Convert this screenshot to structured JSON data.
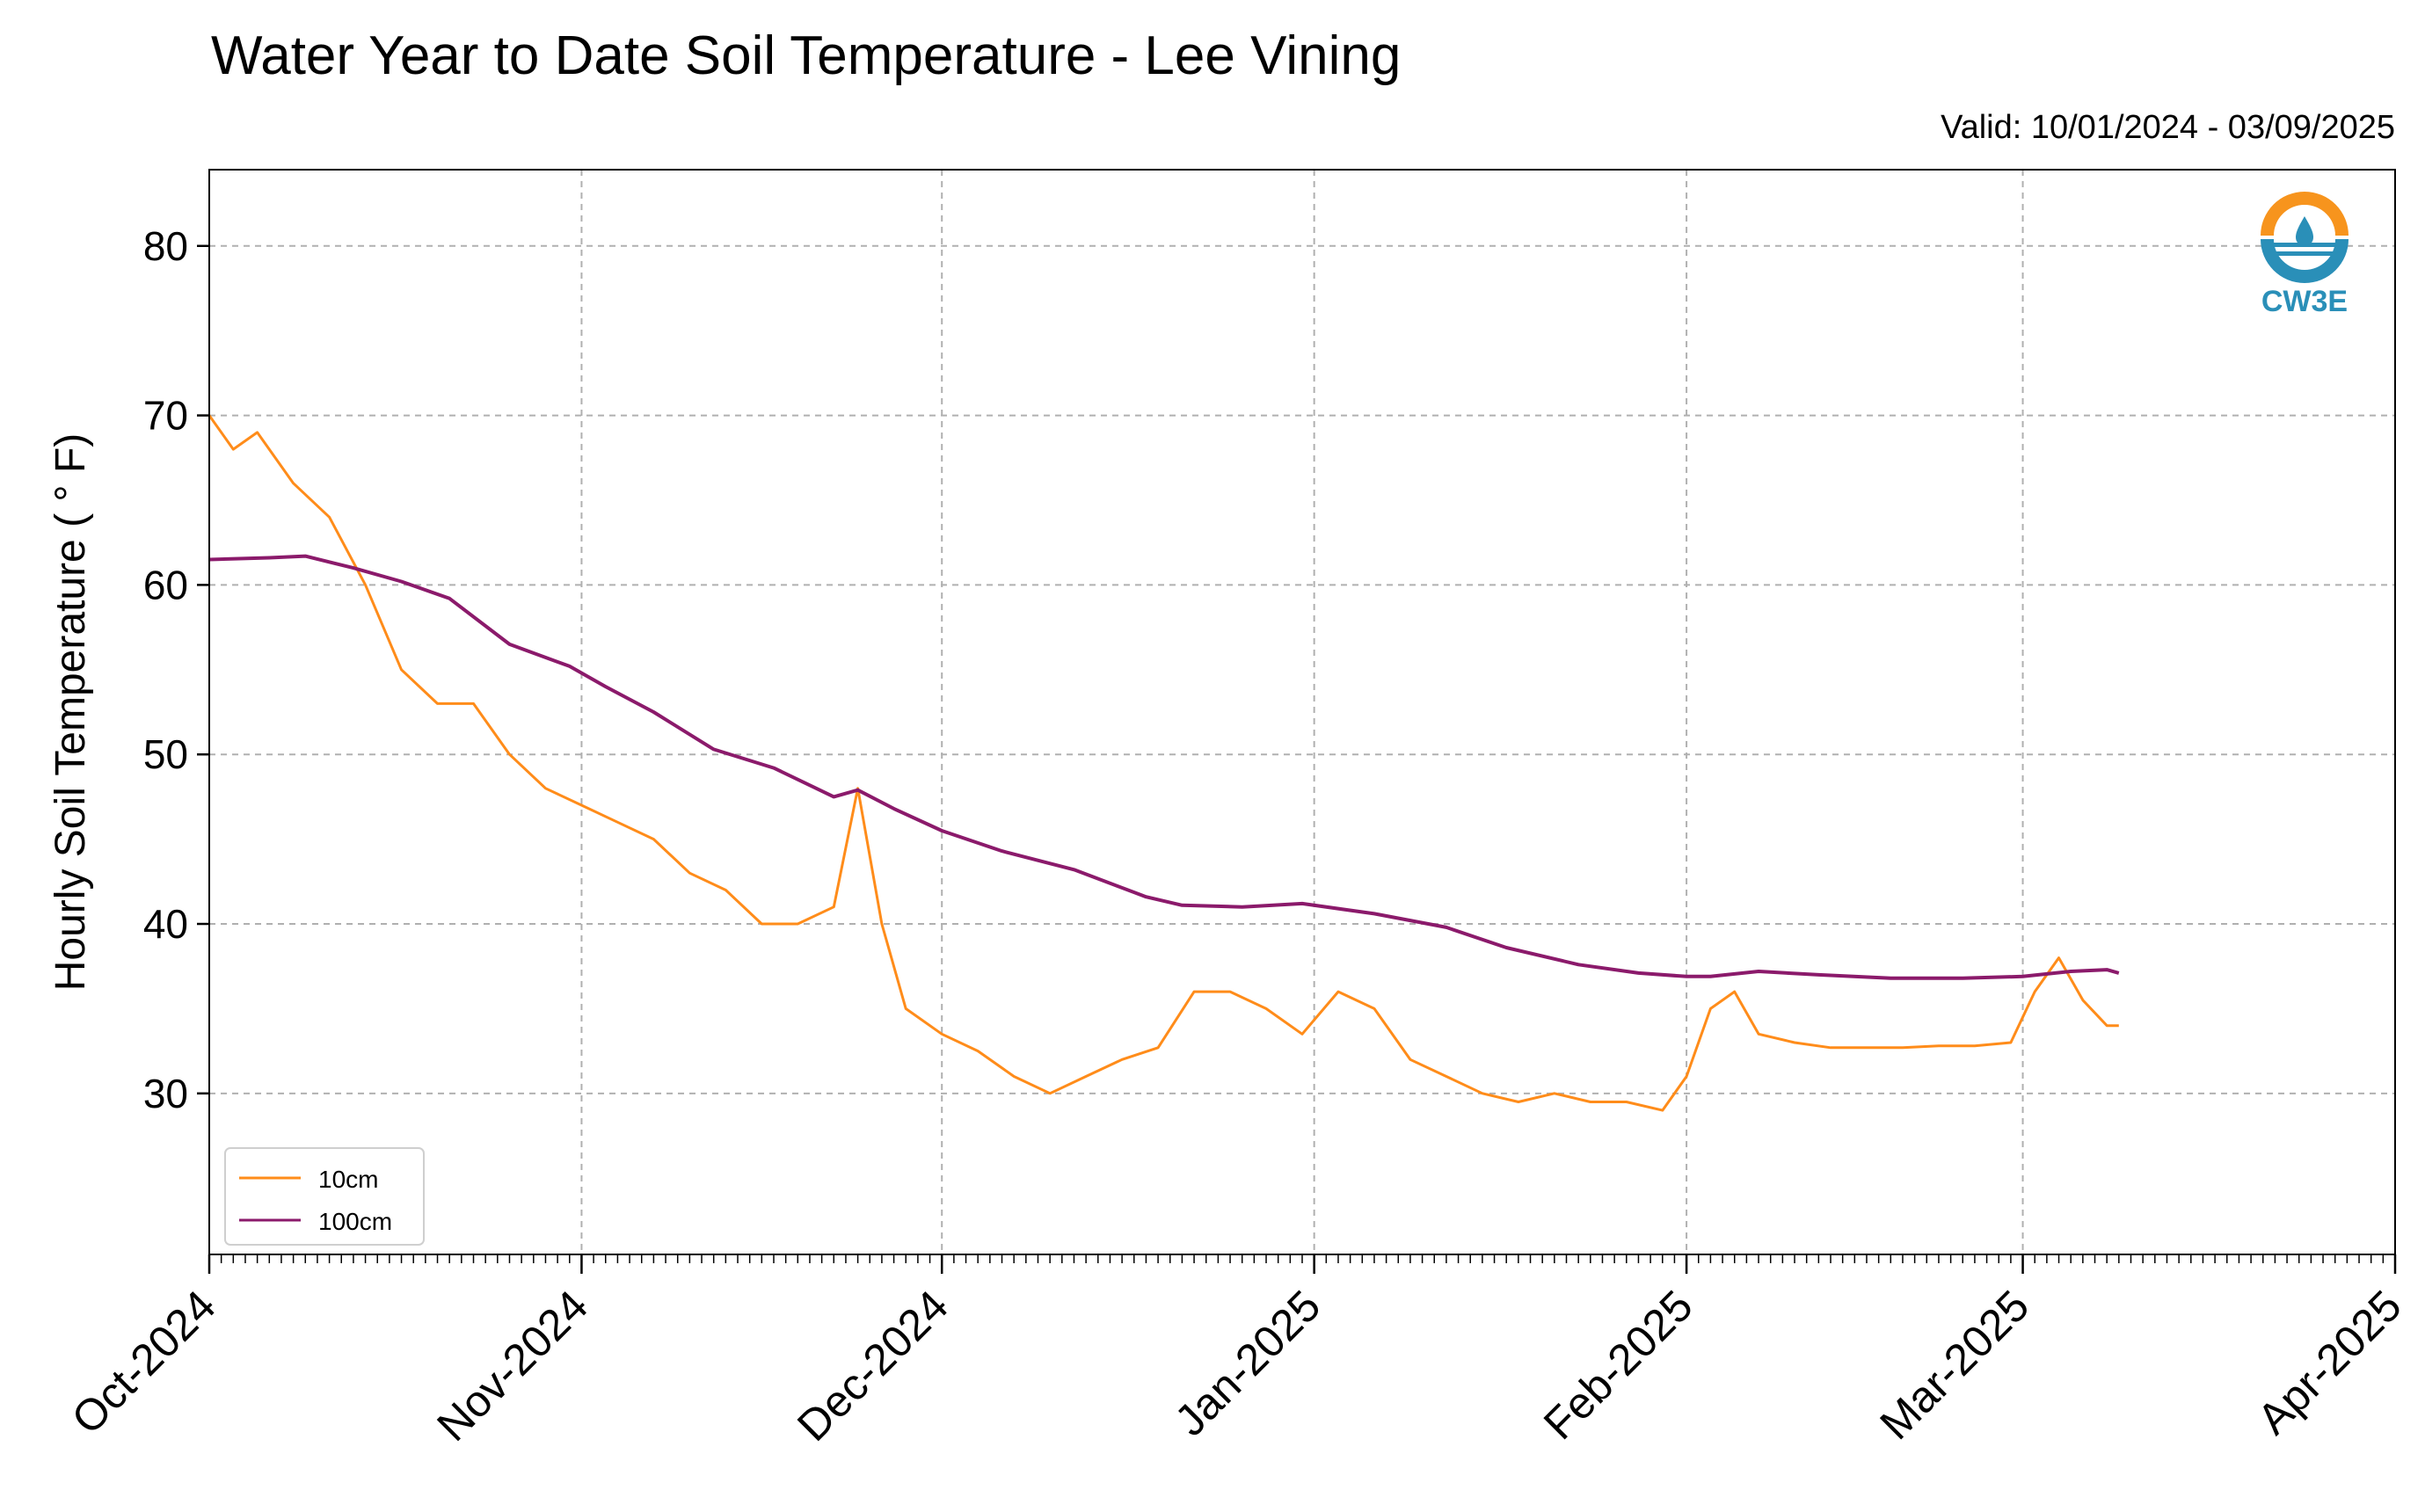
{
  "chart_data": {
    "type": "line",
    "title": "Water Year to Date Soil Temperature - Lee Vining",
    "subtitle": "Valid: 10/01/2024 - 03/09/2025",
    "ylabel": "Hourly Soil Temperature ( ° F)",
    "xlabel": "",
    "xlim": [
      "2024-10-01",
      "2025-04-01"
    ],
    "ylim": [
      20.5,
      84.5
    ],
    "grid": true,
    "legend_position": "lower-left",
    "x_ticks": [
      "Oct-2024",
      "Nov-2024",
      "Dec-2024",
      "Jan-2025",
      "Feb-2025",
      "Mar-2025",
      "Apr-2025"
    ],
    "y_ticks": [
      30,
      40,
      50,
      60,
      70,
      80
    ],
    "series": [
      {
        "name": "10cm",
        "color": "#ff8c1a",
        "x": [
          "2024-10-01",
          "2024-10-03",
          "2024-10-05",
          "2024-10-08",
          "2024-10-11",
          "2024-10-14",
          "2024-10-17",
          "2024-10-20",
          "2024-10-23",
          "2024-10-26",
          "2024-10-29",
          "2024-11-01",
          "2024-11-04",
          "2024-11-07",
          "2024-11-10",
          "2024-11-13",
          "2024-11-16",
          "2024-11-19",
          "2024-11-22",
          "2024-11-24",
          "2024-11-26",
          "2024-11-28",
          "2024-12-01",
          "2024-12-04",
          "2024-12-07",
          "2024-12-10",
          "2024-12-13",
          "2024-12-16",
          "2024-12-19",
          "2024-12-22",
          "2024-12-25",
          "2024-12-28",
          "2024-12-31",
          "2025-01-03",
          "2025-01-06",
          "2025-01-09",
          "2025-01-12",
          "2025-01-15",
          "2025-01-18",
          "2025-01-21",
          "2025-01-24",
          "2025-01-27",
          "2025-01-30",
          "2025-02-01",
          "2025-02-03",
          "2025-02-05",
          "2025-02-07",
          "2025-02-10",
          "2025-02-13",
          "2025-02-16",
          "2025-02-19",
          "2025-02-22",
          "2025-02-25",
          "2025-02-28",
          "2025-03-02",
          "2025-03-04",
          "2025-03-06",
          "2025-03-08",
          "2025-03-09"
        ],
        "values": [
          70,
          68,
          69,
          66,
          64,
          60,
          55,
          53,
          53,
          50,
          48,
          47,
          46,
          45,
          43,
          42,
          40,
          40,
          41,
          48,
          40,
          35,
          33.5,
          32.5,
          31,
          30,
          31,
          32,
          32.7,
          36,
          36,
          35,
          33.5,
          36,
          35,
          32,
          31,
          30,
          29.5,
          30,
          29.5,
          29.5,
          29,
          31,
          35,
          36,
          33.5,
          33,
          32.7,
          32.7,
          32.7,
          32.8,
          32.8,
          33,
          36,
          38,
          35.5,
          34,
          34
        ]
      },
      {
        "name": "100cm",
        "color": "#8b1a6b",
        "x": [
          "2024-10-01",
          "2024-10-06",
          "2024-10-09",
          "2024-10-13",
          "2024-10-17",
          "2024-10-21",
          "2024-10-26",
          "2024-10-31",
          "2024-11-03",
          "2024-11-07",
          "2024-11-12",
          "2024-11-17",
          "2024-11-22",
          "2024-11-24",
          "2024-11-27",
          "2024-12-01",
          "2024-12-06",
          "2024-12-12",
          "2024-12-18",
          "2024-12-21",
          "2024-12-26",
          "2024-12-31",
          "2025-01-06",
          "2025-01-12",
          "2025-01-17",
          "2025-01-23",
          "2025-01-28",
          "2025-02-01",
          "2025-02-03",
          "2025-02-07",
          "2025-02-12",
          "2025-02-18",
          "2025-02-24",
          "2025-03-01",
          "2025-03-05",
          "2025-03-08",
          "2025-03-09"
        ],
        "values": [
          61.5,
          61.6,
          61.7,
          61,
          60.2,
          59.2,
          56.5,
          55.2,
          54,
          52.5,
          50.3,
          49.2,
          47.5,
          47.9,
          46.8,
          45.5,
          44.3,
          43.2,
          41.6,
          41.1,
          41,
          41.2,
          40.6,
          39.8,
          38.6,
          37.6,
          37.1,
          36.9,
          36.9,
          37.2,
          37,
          36.8,
          36.8,
          36.9,
          37.2,
          37.3,
          37.1
        ]
      }
    ]
  },
  "logo": {
    "name": "cw3e-logo-icon",
    "text": "CW3E",
    "colors": [
      "#f7941d",
      "#2a8fb8"
    ]
  }
}
